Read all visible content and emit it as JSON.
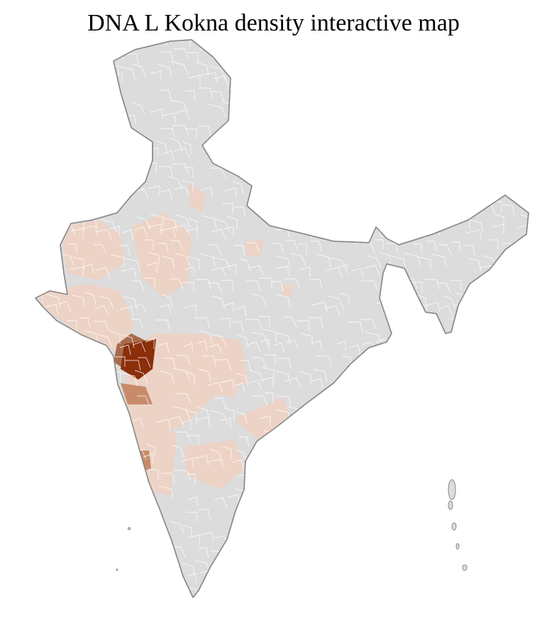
{
  "title": "DNA L Kokna density interactive map",
  "map": {
    "region": "India districts",
    "colors": {
      "no_data": "#dcdcdc",
      "border_district": "#ffffff",
      "border_state": "#888888",
      "low": "#ecd3c6",
      "medium": "#c98a6c",
      "medium_high": "#a86a4c",
      "high": "#8b2e0a"
    },
    "legend": null
  }
}
